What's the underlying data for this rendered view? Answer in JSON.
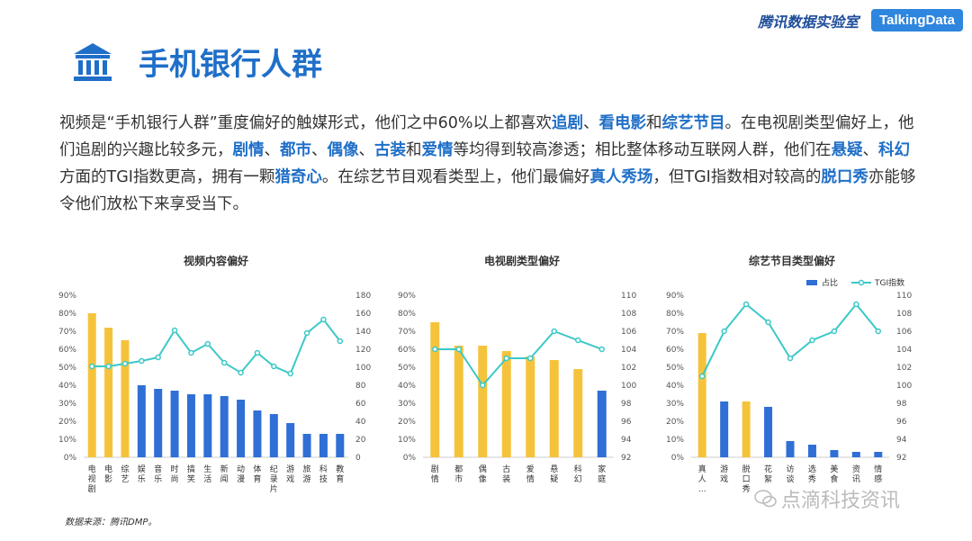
{
  "header": {
    "lab_name": "腾讯数据实验室",
    "brand": "TalkingData"
  },
  "page": {
    "title": "手机银行人群",
    "icon": "bank-icon"
  },
  "paragraph": [
    {
      "t": "视频是“手机银行人群”重度偏好的触媒形式，他们之中60%以上都喜欢",
      "h": false
    },
    {
      "t": "追剧",
      "h": true
    },
    {
      "t": "、",
      "h": false
    },
    {
      "t": "看电影",
      "h": true
    },
    {
      "t": "和",
      "h": false
    },
    {
      "t": "综艺节目",
      "h": true
    },
    {
      "t": "。在电视剧类型偏好上，他们追剧的兴趣比较多元，",
      "h": false
    },
    {
      "t": "剧情",
      "h": true
    },
    {
      "t": "、",
      "h": false
    },
    {
      "t": "都市",
      "h": true
    },
    {
      "t": "、",
      "h": false
    },
    {
      "t": "偶像",
      "h": true
    },
    {
      "t": "、",
      "h": false
    },
    {
      "t": "古装",
      "h": true
    },
    {
      "t": "和",
      "h": false
    },
    {
      "t": "爱情",
      "h": true
    },
    {
      "t": "等均得到较高渗透；相比整体移动互联网人群，他们在",
      "h": false
    },
    {
      "t": "悬疑",
      "h": true
    },
    {
      "t": "、",
      "h": false
    },
    {
      "t": "科幻",
      "h": true
    },
    {
      "t": "方面的TGI指数更高，拥有一颗",
      "h": false
    },
    {
      "t": "猎奇心",
      "h": true
    },
    {
      "t": "。在综艺节目观看类型上，他们最偏好",
      "h": false
    },
    {
      "t": "真人秀场",
      "h": true
    },
    {
      "t": "，但TGI指数相对较高的",
      "h": false
    },
    {
      "t": "脱口秀",
      "h": true
    },
    {
      "t": "亦能够令他们放松下来享受当下。",
      "h": false
    }
  ],
  "colors": {
    "bar_yellow": "#f5c33b",
    "bar_blue": "#2f6fd6",
    "line": "#3cc8c8",
    "accent": "#1f6fc8"
  },
  "chart_data": [
    {
      "type": "bar",
      "title": "视频内容偏好",
      "categories": [
        "电视剧",
        "电影",
        "综艺",
        "娱乐",
        "音乐",
        "时尚",
        "搞笑",
        "生活",
        "新闻",
        "动漫",
        "体育",
        "纪录片",
        "游戏",
        "旅游",
        "科技",
        "教育"
      ],
      "series": [
        {
          "values": [
            80,
            72,
            65,
            40,
            38,
            37,
            35,
            35,
            34,
            32,
            26,
            24,
            19,
            13,
            13,
            13
          ]
        },
        {
          "values": [
            101,
            101,
            104,
            107,
            111,
            141,
            116,
            126,
            105,
            94,
            116,
            101,
            93,
            138,
            153,
            129
          ]
        }
      ],
      "highlight_count": 3,
      "y_left": {
        "ticks": [
          "0%",
          "10%",
          "20%",
          "30%",
          "40%",
          "50%",
          "60%",
          "70%",
          "80%",
          "90%"
        ],
        "range": [
          0,
          90
        ]
      },
      "y_right": {
        "ticks": [
          "0",
          "20",
          "40",
          "60",
          "80",
          "100",
          "120",
          "140",
          "160",
          "180"
        ],
        "range": [
          0,
          180
        ]
      },
      "grid": false
    },
    {
      "type": "bar",
      "title": "电视剧类型偏好",
      "categories": [
        "剧情",
        "都市",
        "偶像",
        "古装",
        "爱情",
        "悬疑",
        "科幻",
        "家庭"
      ],
      "series": [
        {
          "values": [
            75,
            62,
            62,
            59,
            56,
            54,
            49,
            37
          ]
        },
        {
          "values": [
            104,
            104,
            100,
            103,
            103,
            106,
            105,
            104
          ]
        }
      ],
      "highlight_count": 7,
      "y_left": {
        "ticks": [
          "0%",
          "10%",
          "20%",
          "30%",
          "40%",
          "50%",
          "60%",
          "70%",
          "80%",
          "90%"
        ],
        "range": [
          0,
          90
        ]
      },
      "y_right": {
        "ticks": [
          "92",
          "94",
          "96",
          "98",
          "100",
          "102",
          "104",
          "106",
          "108",
          "110"
        ],
        "range": [
          92,
          110
        ]
      },
      "grid": false
    },
    {
      "type": "bar",
      "title": "综艺节目类型偏好",
      "categories": [
        "真人…",
        "游戏",
        "脱口秀",
        "花絮",
        "访谈",
        "选秀",
        "美食",
        "资讯",
        "情感"
      ],
      "series": [
        {
          "name": "占比",
          "values": [
            69,
            31,
            31,
            28,
            9,
            7,
            4,
            3,
            3
          ]
        },
        {
          "name": "TGI指数",
          "values": [
            101,
            106,
            109,
            107,
            103,
            105,
            106,
            109,
            106
          ]
        }
      ],
      "highlight_indices": [
        0,
        2
      ],
      "y_left": {
        "ticks": [
          "0%",
          "10%",
          "20%",
          "30%",
          "40%",
          "50%",
          "60%",
          "70%",
          "80%",
          "90%"
        ],
        "range": [
          0,
          90
        ]
      },
      "y_right": {
        "ticks": [
          "92",
          "94",
          "96",
          "98",
          "100",
          "102",
          "104",
          "106",
          "108",
          "110"
        ],
        "range": [
          92,
          110
        ]
      },
      "legend": "top-right",
      "grid": false
    }
  ],
  "source": "数据来源：腾讯DMP。",
  "watermark": "点滴科技资讯"
}
